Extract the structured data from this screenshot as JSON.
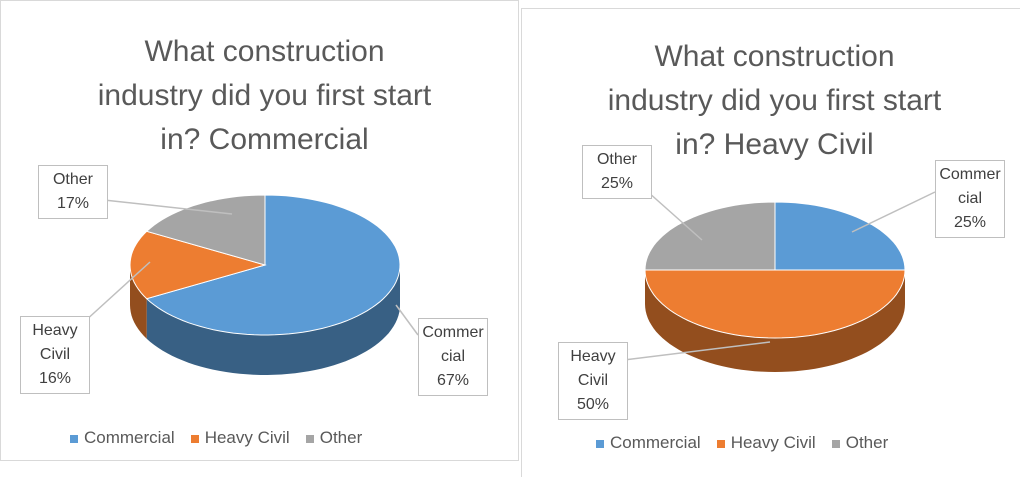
{
  "chart_data": [
    {
      "type": "pie3d",
      "title": "What construction industry did you first start in? Commercial",
      "categories": [
        "Commercial",
        "Heavy Civil",
        "Other"
      ],
      "values": [
        67,
        16,
        17
      ],
      "value_labels": [
        "67%",
        "16%",
        "17%"
      ],
      "colors": [
        "#5b9bd5",
        "#ed7d31",
        "#a5a5a5"
      ]
    },
    {
      "type": "pie3d",
      "title": "What construction industry did you first start in? Heavy Civil",
      "categories": [
        "Commercial",
        "Heavy Civil",
        "Other"
      ],
      "values": [
        25,
        50,
        25
      ],
      "value_labels": [
        "25%",
        "50%",
        "25%"
      ],
      "colors": [
        "#5b9bd5",
        "#ed7d31",
        "#a5a5a5"
      ]
    }
  ]
}
